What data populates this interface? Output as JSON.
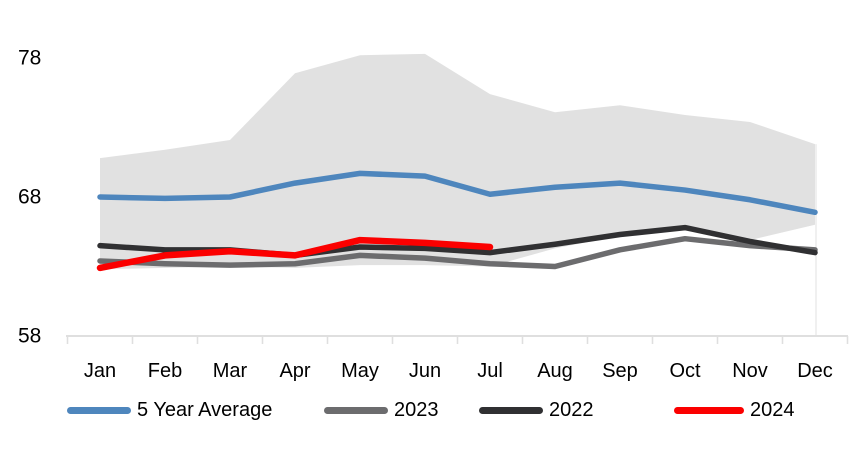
{
  "page": {
    "background": "#FFFFFF"
  },
  "chart_data": {
    "type": "line",
    "title": "",
    "categories": [
      "Jan",
      "Feb",
      "Mar",
      "Apr",
      "May",
      "Jun",
      "Jul",
      "Aug",
      "Sep",
      "Oct",
      "Nov",
      "Dec"
    ],
    "y_axis": {
      "ticks": [
        78,
        68,
        58
      ],
      "min": 58,
      "max": 79
    },
    "grid": false,
    "legend_position": "bottom",
    "band": {
      "name": "5-year range",
      "color": "#E1E1E1",
      "upper": [
        70.8,
        71.4,
        72.1,
        76.9,
        78.2,
        78.3,
        75.4,
        74.1,
        74.6,
        73.9,
        73.4,
        71.8
      ],
      "lower": [
        62.8,
        62.9,
        63.0,
        62.9,
        63.1,
        63.1,
        63.0,
        64.3,
        65.2,
        65.8,
        64.9,
        66.0
      ]
    },
    "series": [
      {
        "name": "5 Year Average",
        "color": "#4E86BD",
        "width": 5.5,
        "values": [
          68.0,
          67.9,
          68.0,
          69.0,
          69.7,
          69.5,
          68.2,
          68.7,
          69.0,
          68.5,
          67.8,
          66.9
        ]
      },
      {
        "name": "2023",
        "color": "#6C6C6E",
        "width": 5.5,
        "values": [
          63.4,
          63.2,
          63.1,
          63.2,
          63.8,
          63.6,
          63.2,
          63.0,
          64.2,
          65.0,
          64.5,
          64.2
        ]
      },
      {
        "name": "2022",
        "color": "#303032",
        "width": 5.5,
        "values": [
          64.5,
          64.2,
          64.2,
          63.8,
          64.4,
          64.3,
          64.0,
          64.6,
          65.3,
          65.8,
          64.8,
          64.0
        ]
      },
      {
        "name": "2024",
        "color": "#FB0000",
        "width": 6.5,
        "values": [
          62.9,
          63.8,
          64.1,
          63.8,
          64.9,
          64.7,
          64.4
        ]
      }
    ]
  },
  "legend": {
    "items": [
      {
        "label": "5 Year Average",
        "color": "#4E86BD"
      },
      {
        "label": "2023",
        "color": "#6C6C6E"
      },
      {
        "label": "2022",
        "color": "#303032"
      },
      {
        "label": "2024",
        "color": "#FB0000"
      }
    ]
  }
}
